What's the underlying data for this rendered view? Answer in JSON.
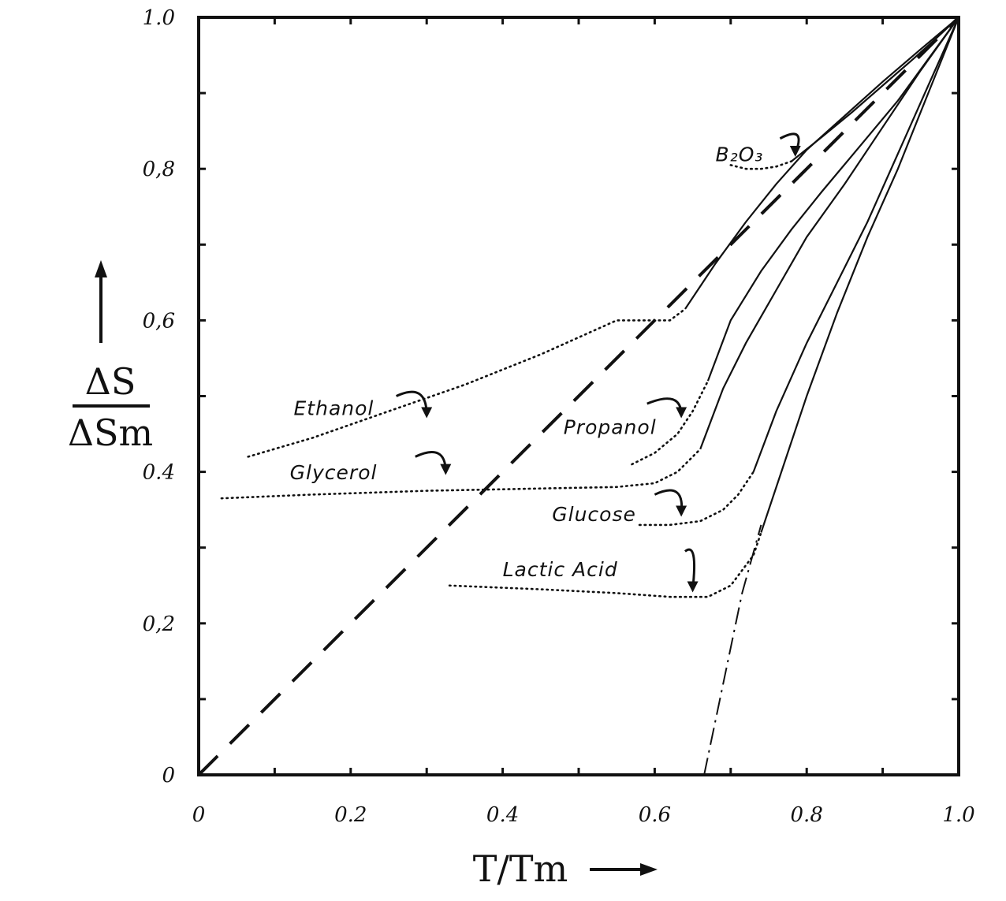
{
  "chart_data": {
    "type": "line",
    "x_axis": {
      "label": "T/Tm",
      "ticks": [
        0,
        0.2,
        0.4,
        0.6,
        0.8,
        1.0
      ],
      "tick_labels": [
        "0",
        "0.2",
        "0.4",
        "0.6",
        "0.8",
        "1.0"
      ],
      "range": [
        0,
        1.0
      ]
    },
    "y_axis": {
      "label_numerator": "ΔS",
      "label_denominator": "ΔSm",
      "ticks": [
        0,
        0.2,
        0.4,
        0.6,
        0.8,
        1.0
      ],
      "tick_labels": [
        "0",
        "0,2",
        "0.4",
        "0,6",
        "0,8",
        "1.0"
      ],
      "range": [
        0,
        1.0
      ]
    },
    "grid": false,
    "reference_lines": [
      {
        "style": "dashed",
        "x": [
          0.0,
          1.0
        ],
        "y": [
          0.0,
          1.0
        ]
      },
      {
        "style": "dash-dot",
        "x": [
          0.665,
          0.69,
          0.715,
          0.74
        ],
        "y": [
          0.0,
          0.12,
          0.24,
          0.33
        ]
      }
    ],
    "series": [
      {
        "name": "B₂O₃",
        "measured": {
          "x": [
            0.78,
            0.82,
            0.86,
            0.9,
            0.94,
            0.97,
            1.0
          ],
          "y": [
            0.81,
            0.842,
            0.875,
            0.91,
            0.945,
            0.972,
            1.0
          ]
        },
        "extrapolated": {
          "x": [
            0.7,
            0.72,
            0.74,
            0.76,
            0.78
          ],
          "y": [
            0.805,
            0.8,
            0.8,
            0.803,
            0.81
          ]
        }
      },
      {
        "name": "Ethanol",
        "measured": {
          "x": [
            0.64,
            0.68,
            0.72,
            0.76,
            0.8,
            0.85,
            0.9,
            0.95,
            1.0
          ],
          "y": [
            0.615,
            0.675,
            0.73,
            0.78,
            0.825,
            0.87,
            0.915,
            0.958,
            1.0
          ]
        },
        "extrapolated": {
          "x": [
            0.065,
            0.15,
            0.25,
            0.35,
            0.45,
            0.55,
            0.62,
            0.64
          ],
          "y": [
            0.42,
            0.445,
            0.48,
            0.515,
            0.555,
            0.6,
            0.6,
            0.615
          ]
        }
      },
      {
        "name": "Propanol",
        "measured": {
          "x": [
            0.67,
            0.7,
            0.74,
            0.78,
            0.82,
            0.87,
            0.92,
            0.96,
            1.0
          ],
          "y": [
            0.52,
            0.6,
            0.665,
            0.72,
            0.77,
            0.83,
            0.89,
            0.945,
            1.0
          ]
        },
        "extrapolated": {
          "x": [
            0.57,
            0.6,
            0.63,
            0.65,
            0.67
          ],
          "y": [
            0.41,
            0.425,
            0.45,
            0.48,
            0.52
          ]
        }
      },
      {
        "name": "Glycerol",
        "measured": {
          "x": [
            0.66,
            0.69,
            0.72,
            0.76,
            0.8,
            0.85,
            0.9,
            0.95,
            1.0
          ],
          "y": [
            0.43,
            0.51,
            0.57,
            0.64,
            0.71,
            0.78,
            0.855,
            0.93,
            1.0
          ]
        },
        "extrapolated": {
          "x": [
            0.03,
            0.15,
            0.3,
            0.45,
            0.55,
            0.6,
            0.63,
            0.66
          ],
          "y": [
            0.365,
            0.37,
            0.375,
            0.378,
            0.38,
            0.385,
            0.4,
            0.43
          ]
        }
      },
      {
        "name": "Glucose",
        "measured": {
          "x": [
            0.73,
            0.76,
            0.8,
            0.84,
            0.88,
            0.92,
            0.96,
            1.0
          ],
          "y": [
            0.4,
            0.48,
            0.57,
            0.65,
            0.73,
            0.82,
            0.91,
            1.0
          ]
        },
        "extrapolated": {
          "x": [
            0.58,
            0.62,
            0.66,
            0.69,
            0.71,
            0.73
          ],
          "y": [
            0.33,
            0.33,
            0.335,
            0.35,
            0.37,
            0.4
          ]
        }
      },
      {
        "name": "Lactic Acid",
        "measured": {
          "x": [
            0.74,
            0.77,
            0.8,
            0.84,
            0.88,
            0.92,
            0.96,
            1.0
          ],
          "y": [
            0.32,
            0.41,
            0.5,
            0.61,
            0.71,
            0.8,
            0.9,
            1.0
          ]
        },
        "extrapolated": {
          "x": [
            0.33,
            0.45,
            0.55,
            0.62,
            0.67,
            0.7,
            0.73,
            0.74
          ],
          "y": [
            0.25,
            0.245,
            0.24,
            0.235,
            0.235,
            0.25,
            0.29,
            0.32
          ]
        }
      }
    ],
    "labels": {
      "b2o3": "B₂O₃",
      "ethanol": "Ethanol",
      "propanol": "Propanol",
      "glycerol": "Glycerol",
      "glucose": "Glucose",
      "lactic_acid": "Lactic Acid"
    }
  }
}
